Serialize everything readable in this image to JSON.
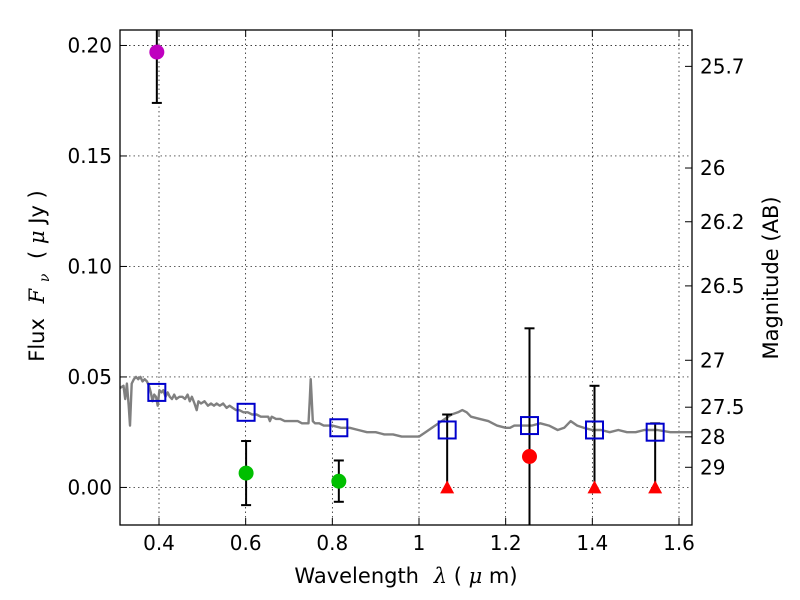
{
  "chart_data": {
    "type": "scatter",
    "xlabel": "Wavelength  λ (μm)",
    "xlabel_parts": {
      "word": "Wavelength",
      "symbol": "λ",
      "unit_open": " (",
      "unit_mu": "μ",
      "unit_rest": "m)"
    },
    "ylabel": "Flux  Fν  ( μJy )",
    "ylabel_parts": {
      "word": "Flux",
      "symbol": "F",
      "subscript": "ν",
      "unit_open": "( ",
      "unit_mu": "μ",
      "unit_rest": "Jy )"
    },
    "y2label": "Magnitude (AB)",
    "xlim": [
      0.31,
      1.63
    ],
    "ylim": [
      -0.017,
      0.207
    ],
    "x_ticks": [
      {
        "value": 0.4,
        "label": "0.4"
      },
      {
        "value": 0.6,
        "label": "0.6"
      },
      {
        "value": 0.8,
        "label": "0.8"
      },
      {
        "value": 1.0,
        "label": "1"
      },
      {
        "value": 1.2,
        "label": "1.2"
      },
      {
        "value": 1.4,
        "label": "1.4"
      },
      {
        "value": 1.6,
        "label": "1.6"
      }
    ],
    "y_ticks": [
      {
        "value": 0.0,
        "label": "0.00"
      },
      {
        "value": 0.05,
        "label": "0.05"
      },
      {
        "value": 0.1,
        "label": "0.10"
      },
      {
        "value": 0.15,
        "label": "0.15"
      },
      {
        "value": 0.2,
        "label": "0.20"
      }
    ],
    "y2_ticks": [
      {
        "value": 25.7,
        "label": "25.7"
      },
      {
        "value": 26,
        "label": "26"
      },
      {
        "value": 26.2,
        "label": "26.2"
      },
      {
        "value": 26.5,
        "label": "26.5"
      },
      {
        "value": 27,
        "label": "27"
      },
      {
        "value": 27.5,
        "label": "27.5"
      },
      {
        "value": 28,
        "label": "28"
      },
      {
        "value": 29,
        "label": "29"
      }
    ],
    "grid": true,
    "colors": {
      "sed": "#808080",
      "model": "#0000cc",
      "uv": "#bf00bf",
      "optical": "#00bf00",
      "nir": "#ff0000",
      "errorbar": "#000000"
    },
    "sed_template": [
      [
        0.31,
        0.045
      ],
      [
        0.318,
        0.046
      ],
      [
        0.322,
        0.04
      ],
      [
        0.326,
        0.047
      ],
      [
        0.33,
        0.037
      ],
      [
        0.333,
        0.028
      ],
      [
        0.337,
        0.047
      ],
      [
        0.342,
        0.049
      ],
      [
        0.347,
        0.05
      ],
      [
        0.352,
        0.049
      ],
      [
        0.357,
        0.05
      ],
      [
        0.362,
        0.048
      ],
      [
        0.367,
        0.049
      ],
      [
        0.372,
        0.048
      ],
      [
        0.377,
        0.046
      ],
      [
        0.381,
        0.043
      ],
      [
        0.385,
        0.039
      ],
      [
        0.389,
        0.042
      ],
      [
        0.393,
        0.041
      ],
      [
        0.397,
        0.037
      ],
      [
        0.401,
        0.044
      ],
      [
        0.406,
        0.043
      ],
      [
        0.41,
        0.044
      ],
      [
        0.415,
        0.041
      ],
      [
        0.42,
        0.043
      ],
      [
        0.425,
        0.041
      ],
      [
        0.43,
        0.04
      ],
      [
        0.435,
        0.042
      ],
      [
        0.44,
        0.04
      ],
      [
        0.447,
        0.041
      ],
      [
        0.454,
        0.041
      ],
      [
        0.46,
        0.04
      ],
      [
        0.466,
        0.042
      ],
      [
        0.471,
        0.039
      ],
      [
        0.476,
        0.041
      ],
      [
        0.482,
        0.038
      ],
      [
        0.487,
        0.035
      ],
      [
        0.491,
        0.039
      ],
      [
        0.497,
        0.038
      ],
      [
        0.505,
        0.039
      ],
      [
        0.513,
        0.037
      ],
      [
        0.52,
        0.038
      ],
      [
        0.527,
        0.037
      ],
      [
        0.533,
        0.038
      ],
      [
        0.54,
        0.037
      ],
      [
        0.548,
        0.038
      ],
      [
        0.556,
        0.036
      ],
      [
        0.563,
        0.037
      ],
      [
        0.57,
        0.036
      ],
      [
        0.578,
        0.035
      ],
      [
        0.585,
        0.035
      ],
      [
        0.595,
        0.034
      ],
      [
        0.605,
        0.034
      ],
      [
        0.615,
        0.033
      ],
      [
        0.625,
        0.033
      ],
      [
        0.635,
        0.032
      ],
      [
        0.645,
        0.032
      ],
      [
        0.652,
        0.032
      ],
      [
        0.656,
        0.03
      ],
      [
        0.66,
        0.032
      ],
      [
        0.67,
        0.031
      ],
      [
        0.68,
        0.031
      ],
      [
        0.69,
        0.03
      ],
      [
        0.7,
        0.03
      ],
      [
        0.71,
        0.03
      ],
      [
        0.72,
        0.03
      ],
      [
        0.73,
        0.029
      ],
      [
        0.74,
        0.029
      ],
      [
        0.745,
        0.029
      ],
      [
        0.748,
        0.04
      ],
      [
        0.75,
        0.049
      ],
      [
        0.752,
        0.042
      ],
      [
        0.755,
        0.03
      ],
      [
        0.76,
        0.029
      ],
      [
        0.77,
        0.029
      ],
      [
        0.78,
        0.028
      ],
      [
        0.79,
        0.028
      ],
      [
        0.8,
        0.028
      ],
      [
        0.82,
        0.027
      ],
      [
        0.84,
        0.027
      ],
      [
        0.86,
        0.026
      ],
      [
        0.88,
        0.025
      ],
      [
        0.9,
        0.025
      ],
      [
        0.92,
        0.024
      ],
      [
        0.94,
        0.024
      ],
      [
        0.96,
        0.023
      ],
      [
        0.98,
        0.023
      ],
      [
        1.0,
        0.023
      ],
      [
        1.015,
        0.025
      ],
      [
        1.03,
        0.027
      ],
      [
        1.045,
        0.029
      ],
      [
        1.06,
        0.031
      ],
      [
        1.075,
        0.033
      ],
      [
        1.09,
        0.034
      ],
      [
        1.1,
        0.035
      ],
      [
        1.11,
        0.034
      ],
      [
        1.12,
        0.032
      ],
      [
        1.14,
        0.031
      ],
      [
        1.16,
        0.03
      ],
      [
        1.18,
        0.028
      ],
      [
        1.2,
        0.027
      ],
      [
        1.21,
        0.027
      ],
      [
        1.22,
        0.028
      ],
      [
        1.24,
        0.028
      ],
      [
        1.26,
        0.028
      ],
      [
        1.28,
        0.029
      ],
      [
        1.3,
        0.028
      ],
      [
        1.32,
        0.026
      ],
      [
        1.335,
        0.027
      ],
      [
        1.35,
        0.03
      ],
      [
        1.365,
        0.028
      ],
      [
        1.38,
        0.027
      ],
      [
        1.4,
        0.026
      ],
      [
        1.42,
        0.026
      ],
      [
        1.44,
        0.025
      ],
      [
        1.46,
        0.026
      ],
      [
        1.48,
        0.025
      ],
      [
        1.5,
        0.025
      ],
      [
        1.52,
        0.026
      ],
      [
        1.55,
        0.026
      ],
      [
        1.58,
        0.025
      ],
      [
        1.6,
        0.025
      ],
      [
        1.63,
        0.025
      ]
    ],
    "model_points": [
      {
        "x": 0.395,
        "y": 0.043
      },
      {
        "x": 0.601,
        "y": 0.034
      },
      {
        "x": 0.815,
        "y": 0.027
      },
      {
        "x": 1.065,
        "y": 0.026
      },
      {
        "x": 1.255,
        "y": 0.028
      },
      {
        "x": 1.405,
        "y": 0.026
      },
      {
        "x": 1.545,
        "y": 0.025
      }
    ],
    "uv_points": [
      {
        "x": 0.395,
        "y": 0.197,
        "err_low": 0.174,
        "err_high": 0.208
      }
    ],
    "optical_points": [
      {
        "x": 0.601,
        "y": 0.0065,
        "err_low": -0.008,
        "err_high": 0.021
      },
      {
        "x": 0.815,
        "y": 0.0028,
        "err_low": -0.0065,
        "err_high": 0.0122
      }
    ],
    "nir_detection": [
      {
        "x": 1.255,
        "y": 0.014,
        "err_low": -0.018,
        "err_high": 0.072
      }
    ],
    "nir_upper_limits": [
      {
        "x": 1.065,
        "y": 0.0,
        "err_high": 0.033
      },
      {
        "x": 1.405,
        "y": 0.0,
        "err_high": 0.046
      },
      {
        "x": 1.545,
        "y": 0.0,
        "err_high": 0.029
      }
    ]
  }
}
